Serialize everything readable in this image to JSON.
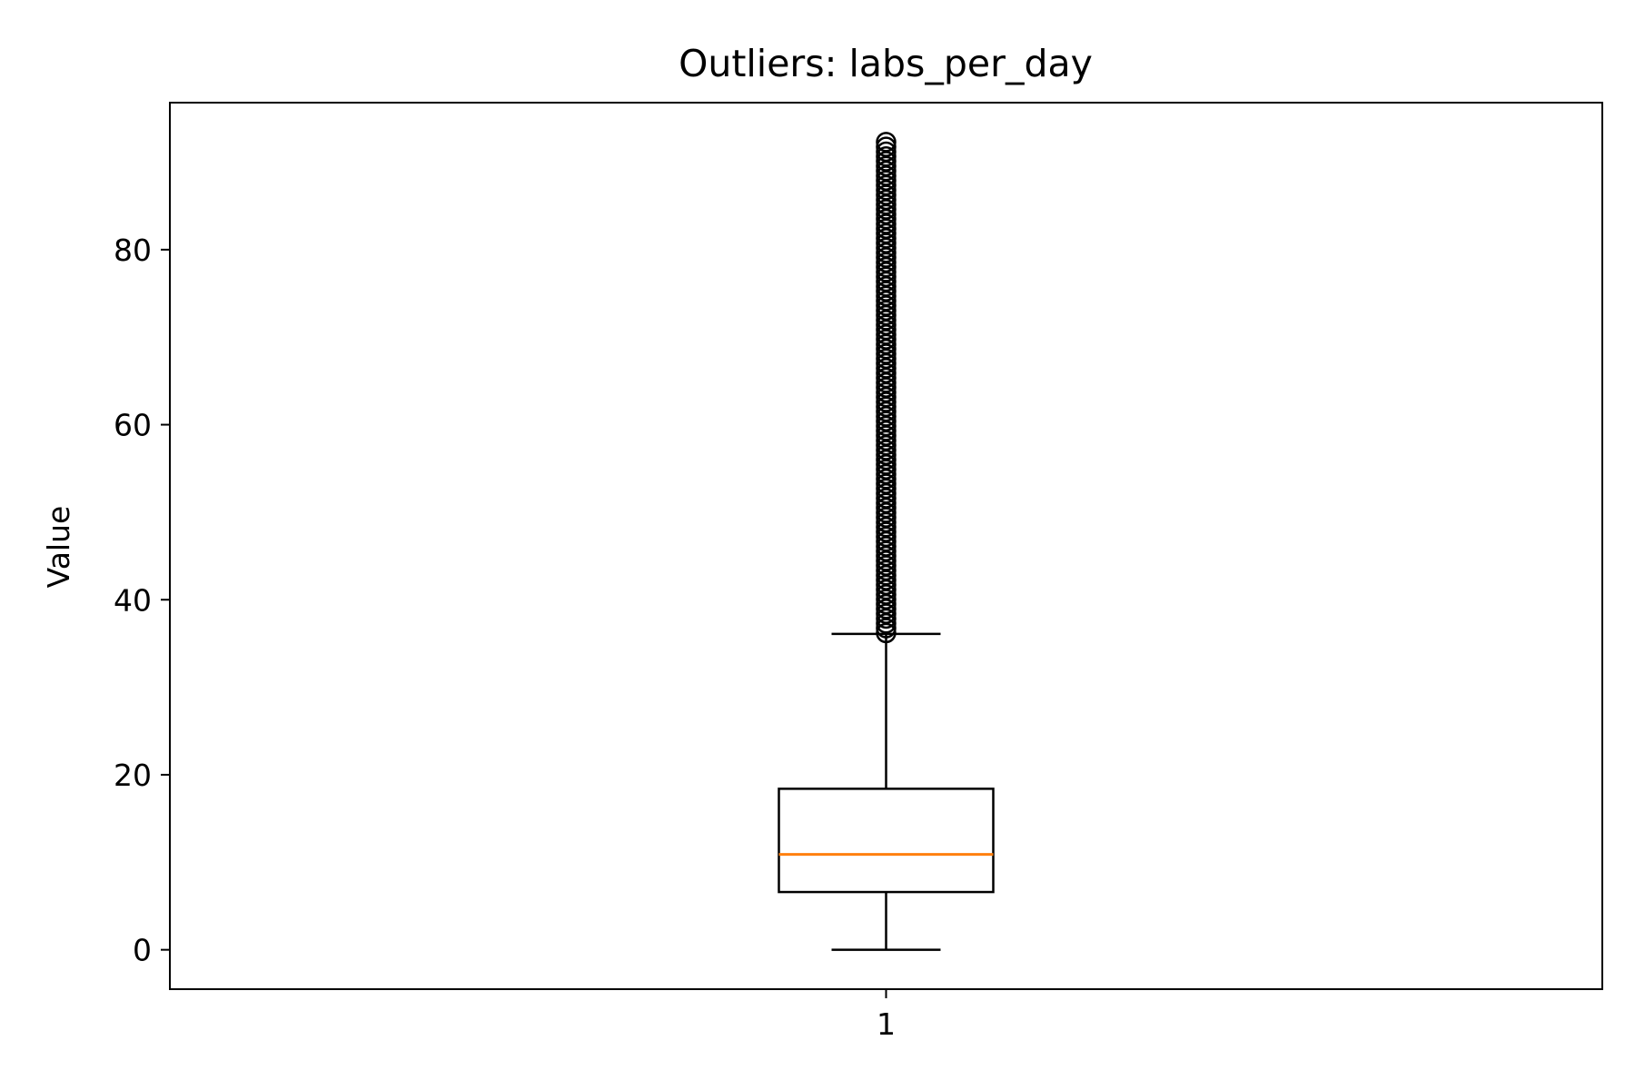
{
  "chart_data": {
    "type": "boxplot",
    "title": "Outliers: labs_per_day",
    "xlabel": "",
    "ylabel": "Value",
    "categories": [
      "1"
    ],
    "ylim": [
      -4.5,
      96.8
    ],
    "yticks": [
      0,
      20,
      40,
      60,
      80
    ],
    "grid": false,
    "boxes": [
      {
        "category": "1",
        "whisker_low": 0,
        "q1": 6.6,
        "median": 10.9,
        "q3": 18.4,
        "whisker_high": 36.1,
        "outliers_min": 36.2,
        "outliers_max": 92.4
      }
    ],
    "colors": {
      "box": "#000000",
      "median": "#ff7f0e",
      "whisker": "#000000",
      "flier": "#000000"
    }
  }
}
